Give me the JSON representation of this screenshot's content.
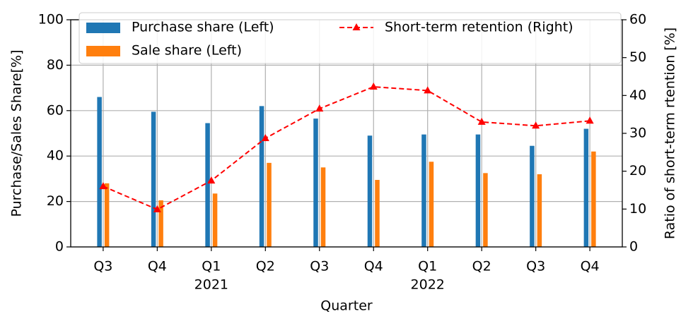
{
  "chart_data": {
    "type": "bar_line",
    "x_label": "Quarter",
    "y_label": "Purchase/Sales Share[%]",
    "y2_label": "Ratio of short-term rtention [%]",
    "categories": [
      "Q3",
      "Q4",
      "Q1",
      "Q2",
      "Q3",
      "Q4",
      "Q1",
      "Q2",
      "Q3",
      "Q4"
    ],
    "years": [
      null,
      null,
      "2021",
      null,
      null,
      null,
      "2022",
      null,
      null,
      null
    ],
    "series": [
      {
        "name": "Purchase share (Left)",
        "color": "#1f77b4",
        "kind": "bar",
        "values": [
          66,
          59.5,
          54.5,
          62,
          56.5,
          49,
          49.5,
          49.5,
          44.5,
          52
        ]
      },
      {
        "name": "Sale share (Left)",
        "color": "#ff7f0e",
        "kind": "bar",
        "values": [
          28,
          20.5,
          23.5,
          37,
          35,
          29.5,
          37.5,
          32.5,
          32,
          42
        ]
      },
      {
        "name": "Short-term retention (Right)",
        "color": "#ff0000",
        "kind": "line",
        "axis": "y2",
        "values": [
          16.0,
          9.9,
          17.5,
          28.7,
          36.5,
          42.3,
          41.3,
          33.0,
          32.0,
          33.3
        ]
      }
    ],
    "ylim": [
      0,
      100
    ],
    "yticks": [
      0,
      20,
      40,
      60,
      80,
      100
    ],
    "y2lim": [
      0,
      60
    ],
    "y2ticks": [
      0,
      10,
      20,
      30,
      40,
      50,
      60
    ],
    "grid": true,
    "legend": "upper center"
  }
}
